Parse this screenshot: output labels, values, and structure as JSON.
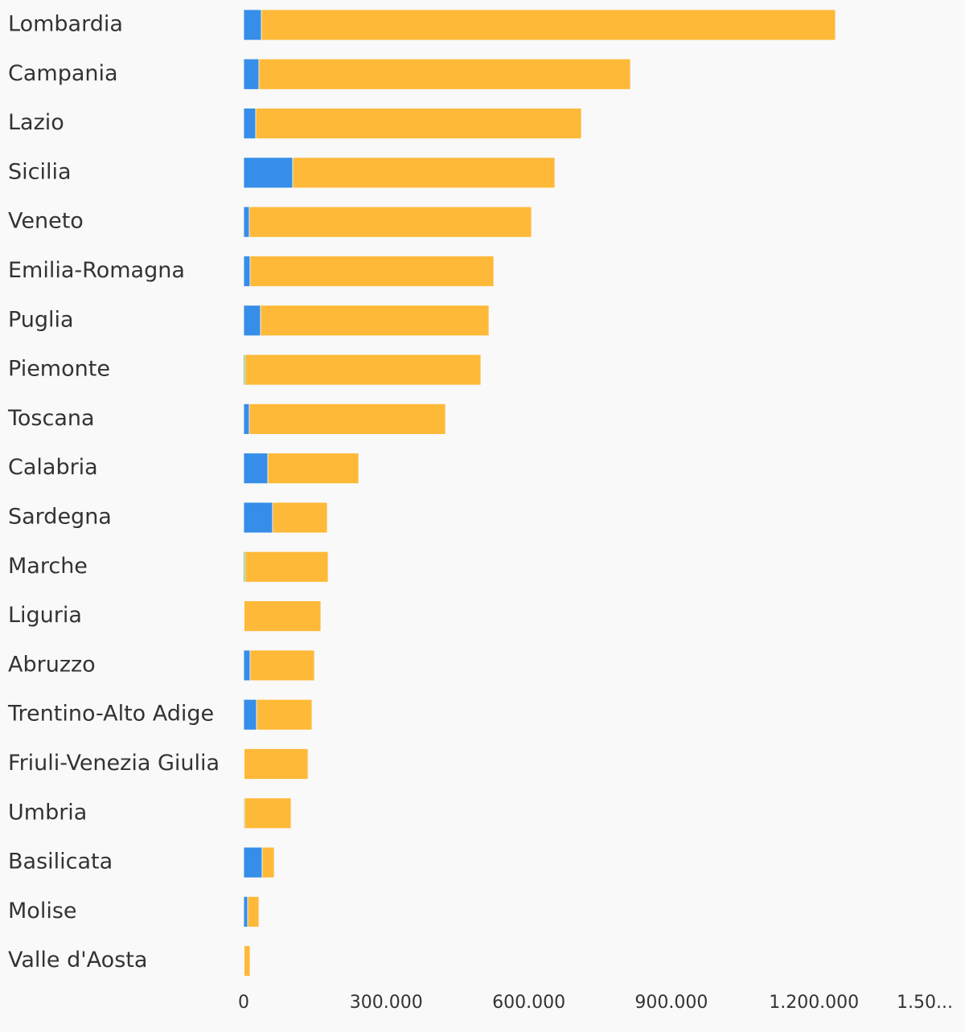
{
  "chart_data": {
    "type": "stacked-bar-horizontal",
    "categories": [
      "Lombardia",
      "Campania",
      "Lazio",
      "Sicilia",
      "Veneto",
      "Emilia-Romagna",
      "Puglia",
      "Piemonte",
      "Toscana",
      "Calabria",
      "Sardegna",
      "Marche",
      "Liguria",
      "Abruzzo",
      "Trentino-Alto Adige",
      "Friuli-Venezia Giulia",
      "Umbria",
      "Basilicata",
      "Molise",
      "Valle d'Aosta"
    ],
    "series": [
      {
        "color": "#368ee8",
        "values": [
          37200,
          32100,
          25400,
          103200,
          11800,
          13500,
          35500,
          0,
          11800,
          50800,
          60900,
          0,
          1000,
          13500,
          27100,
          1000,
          0,
          38900,
          8500,
          1000
        ]
      },
      {
        "color": "#3cb44b",
        "values": [
          0,
          0,
          0,
          0,
          0,
          0,
          0,
          3000,
          0,
          0,
          0,
          3000,
          0,
          0,
          0,
          0,
          2000,
          0,
          0,
          0
        ]
      },
      {
        "color": "#ffb938",
        "values": [
          1208000,
          781800,
          685200,
          551600,
          593900,
          512700,
          480600,
          496100,
          412900,
          191200,
          115100,
          174700,
          161400,
          135400,
          116700,
          134400,
          97800,
          25400,
          23600,
          12500
        ]
      }
    ],
    "xlim": [
      0,
      1500000
    ],
    "xticks": [
      0,
      {
        "value": 300000,
        "label": "300.000"
      },
      {
        "value": 600000,
        "label": "600.000"
      },
      {
        "value": 900000,
        "label": "900.000"
      },
      {
        "value": 1200000,
        "label": "1.200.000"
      },
      {
        "value": 1500000,
        "label": "1.50..."
      }
    ]
  }
}
